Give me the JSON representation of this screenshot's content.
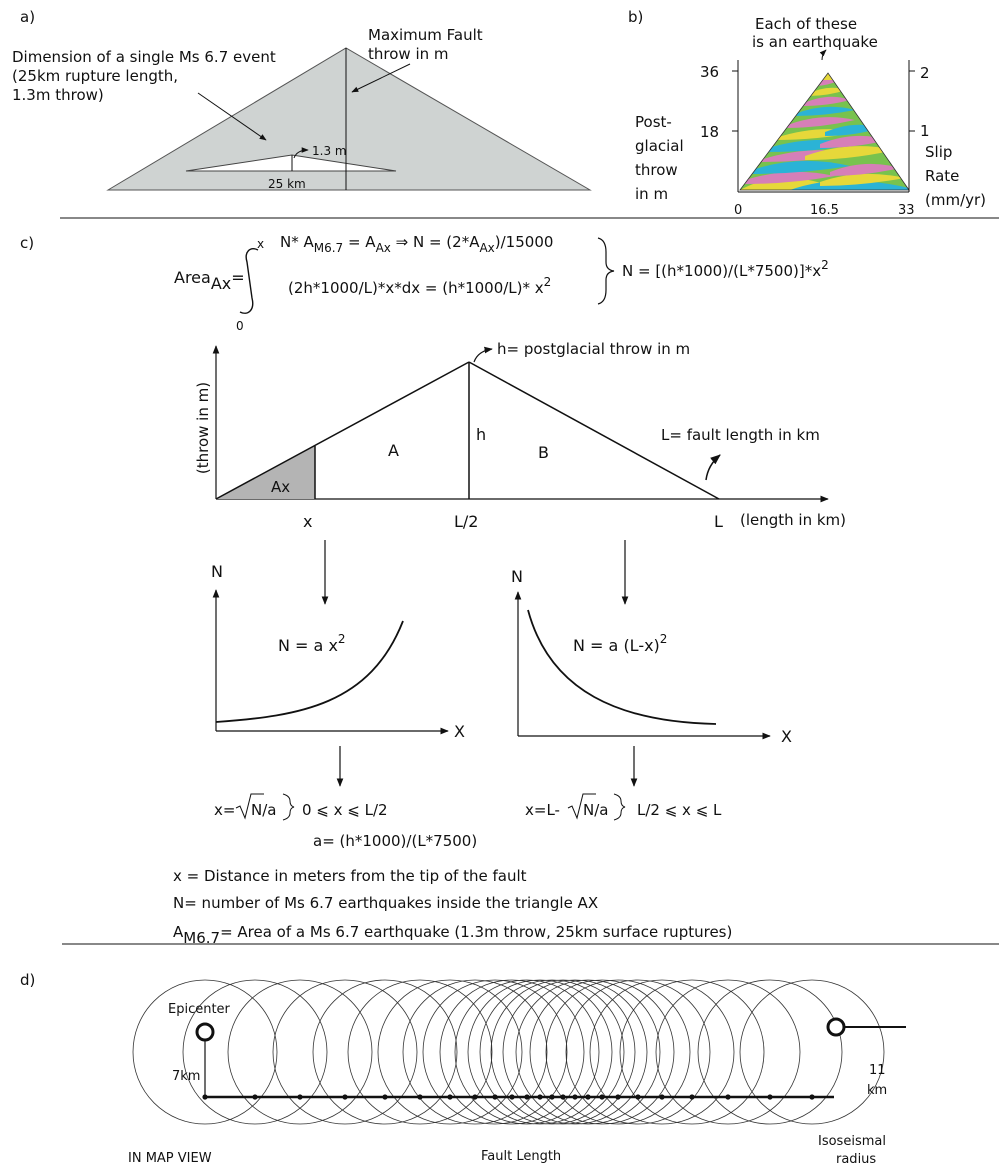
{
  "panel_a": {
    "label": "a)",
    "single_event_label": [
      "Dimension of a single Ms 6.7 event",
      "(25km rupture length,",
      "1.3m throw)"
    ],
    "max_throw_label": [
      "Maximum Fault",
      "throw in m"
    ],
    "throw_value": "1.3 m",
    "length_value": "25 km",
    "colors": {
      "triangle_fill": "#cfd3d2",
      "event_fill": "#ffffff"
    }
  },
  "panel_b": {
    "label": "b)",
    "annotation": [
      "Each of these",
      "is an earthquake"
    ],
    "left_axis_title": [
      "Post-",
      "glacial",
      "throw",
      "in m"
    ],
    "right_axis_title": [
      "Slip",
      "Rate",
      "(mm/yr)"
    ],
    "left_ticks": [
      "36",
      "18"
    ],
    "right_ticks": [
      "2",
      "1"
    ],
    "x_ticks": [
      "0",
      "16.5",
      "33"
    ],
    "colors": [
      "#e6d83a",
      "#2bb3d6",
      "#d67fb8",
      "#78c24e"
    ]
  },
  "panel_c": {
    "label": "c)",
    "eq_area": "Area",
    "eq_area_sub": "Ax",
    "eq_equals": "=",
    "eq_upper_limit": "x",
    "eq_lower_limit": "0",
    "eq_line1": [
      "N* A",
      "M6.7",
      " = A",
      "Ax",
      " ⇒ N = (2*A",
      "Ax",
      ")/15000"
    ],
    "eq_line2": [
      "(2h*1000/L)*x*dx = (h*1000/L)* x",
      "2"
    ],
    "eq_result": [
      "N = [(h*1000)/(L*7500)]*x",
      "2"
    ],
    "y_axis_label": "(throw in m)",
    "x_axis_label": "(length in km)",
    "peak_label": "h= postglacial throw in m",
    "fault_length_label": "L= fault length in km",
    "area_a": "A",
    "area_b": "B",
    "area_ax": "Ax",
    "h_label": "h",
    "x_tick": "x",
    "half_tick": "L/2",
    "l_tick": "L",
    "left_graph": {
      "y_label": "N",
      "x_label": "X",
      "formula": "N = a x",
      "exp": "2"
    },
    "right_graph": {
      "y_label": "N",
      "x_label": "X",
      "formula": "N = a (L-x)",
      "exp": "2"
    },
    "sol_left": {
      "prefix": "x=",
      "root": "N/a",
      "range": "0 ⩽ x ⩽ L/2"
    },
    "sol_right": {
      "prefix": "x=L-",
      "root": "N/a",
      "range": "L/2 ⩽ x ⩽ L"
    },
    "a_def": "a= (h*1000)/(L*7500)",
    "def_x": "x = Distance in meters from the tip of the fault",
    "def_n": "N= number of Ms 6.7 earthquakes inside the triangle AX",
    "def_a_prefix": "A",
    "def_a_sub": "M6.7",
    "def_a_rest": "= Area of a Ms 6.7 earthquake (1.3m throw, 25km surface ruptures)"
  },
  "panel_d": {
    "label": "d)",
    "epicenter": "Epicenter",
    "depth": "7km",
    "radius_value": [
      "11",
      "km"
    ],
    "map_view": "IN MAP VIEW",
    "fault_length": "Fault Length",
    "isoseismal": [
      "Isoseismal",
      "radius"
    ]
  }
}
